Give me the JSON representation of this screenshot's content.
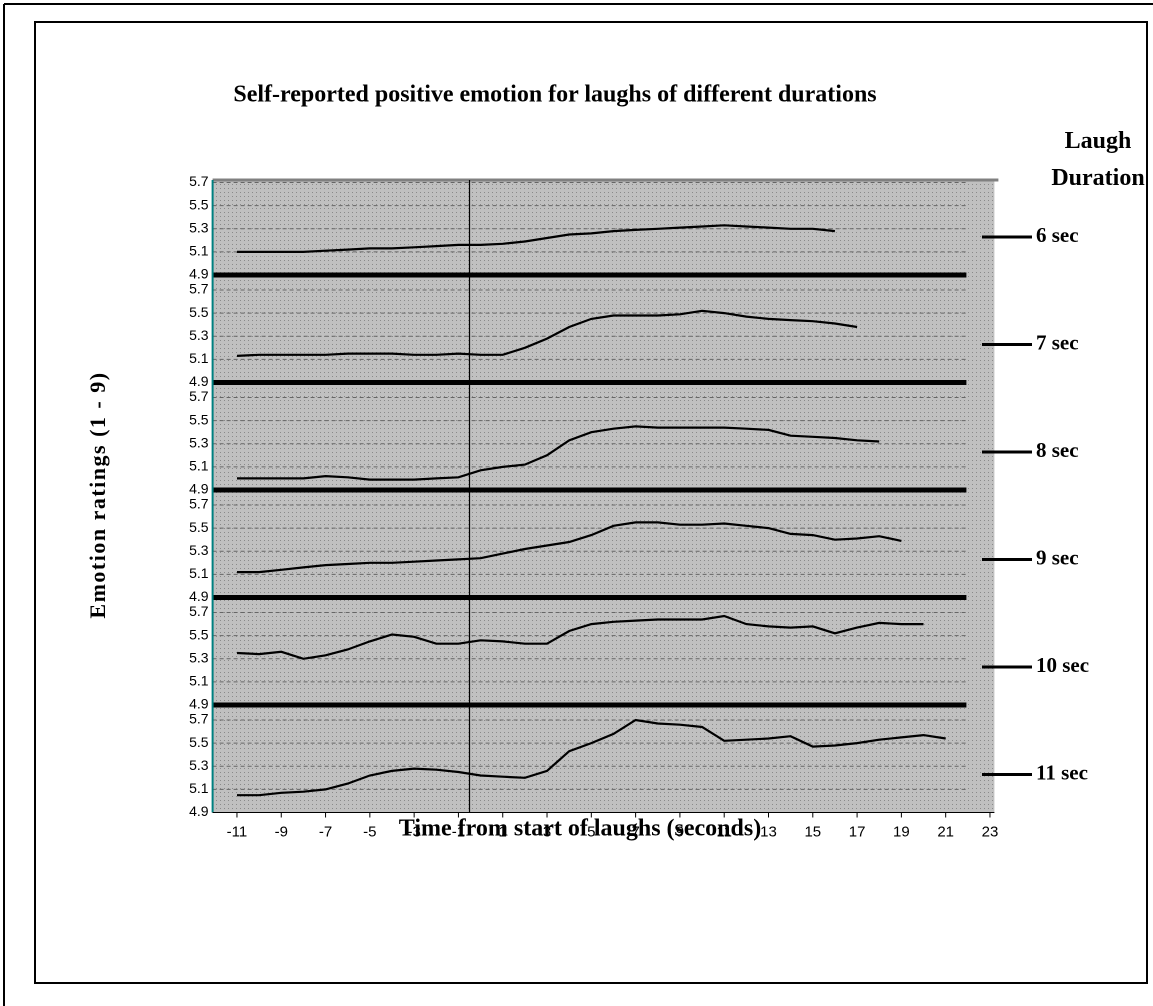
{
  "chart_data": {
    "type": "line",
    "title": "Self-reported positive emotion for laughs of different durations",
    "xlabel": "Time from start of laughs (seconds)",
    "ylabel": "Emotion ratings (1 - 9)",
    "legend_title": "Laugh Duration",
    "x": [
      -11,
      -10,
      -9,
      -8,
      -7,
      -6,
      -5,
      -4,
      -3,
      -2,
      -1,
      0,
      1,
      2,
      3,
      4,
      5,
      6,
      7,
      8,
      9,
      10,
      11,
      12,
      13,
      14,
      15,
      16,
      17,
      18,
      19,
      20,
      21
    ],
    "series": [
      {
        "name": "6 sec",
        "color": "#000000",
        "values": [
          5.1,
          5.1,
          5.1,
          5.1,
          5.11,
          5.12,
          5.13,
          5.13,
          5.14,
          5.15,
          5.16,
          5.16,
          5.17,
          5.19,
          5.22,
          5.25,
          5.26,
          5.28,
          5.29,
          5.3,
          5.31,
          5.32,
          5.33,
          5.32,
          5.31,
          5.3,
          5.3,
          5.28,
          null,
          null,
          null,
          null,
          null
        ]
      },
      {
        "name": "7 sec",
        "color": "#000000",
        "values": [
          5.13,
          5.14,
          5.14,
          5.14,
          5.14,
          5.15,
          5.15,
          5.15,
          5.14,
          5.14,
          5.15,
          5.14,
          5.14,
          5.2,
          5.28,
          5.38,
          5.45,
          5.48,
          5.48,
          5.48,
          5.49,
          5.52,
          5.5,
          5.47,
          5.45,
          5.44,
          5.43,
          5.41,
          5.38,
          null,
          null,
          null,
          null
        ]
      },
      {
        "name": "8 sec",
        "color": "#000000",
        "values": [
          5.0,
          5.0,
          5.0,
          5.0,
          5.02,
          5.01,
          4.99,
          4.99,
          4.99,
          5.0,
          5.01,
          5.07,
          5.1,
          5.12,
          5.2,
          5.33,
          5.4,
          5.43,
          5.45,
          5.44,
          5.44,
          5.44,
          5.44,
          5.43,
          5.42,
          5.37,
          5.36,
          5.35,
          5.33,
          5.32,
          null,
          null,
          null
        ]
      },
      {
        "name": "9 sec",
        "color": "#000000",
        "values": [
          5.12,
          5.12,
          5.14,
          5.16,
          5.18,
          5.19,
          5.2,
          5.2,
          5.21,
          5.22,
          5.23,
          5.24,
          5.28,
          5.32,
          5.35,
          5.38,
          5.44,
          5.52,
          5.55,
          5.55,
          5.53,
          5.53,
          5.54,
          5.52,
          5.5,
          5.45,
          5.44,
          5.4,
          5.41,
          5.43,
          5.39,
          null,
          null
        ]
      },
      {
        "name": "10 sec",
        "color": "#000000",
        "values": [
          5.35,
          5.34,
          5.36,
          5.3,
          5.33,
          5.38,
          5.45,
          5.51,
          5.49,
          5.43,
          5.43,
          5.46,
          5.45,
          5.43,
          5.43,
          5.54,
          5.6,
          5.62,
          5.63,
          5.64,
          5.64,
          5.64,
          5.67,
          5.6,
          5.58,
          5.57,
          5.58,
          5.52,
          5.57,
          5.61,
          5.6,
          5.6,
          null
        ]
      },
      {
        "name": "11 sec",
        "color": "#000000",
        "values": [
          5.05,
          5.05,
          5.07,
          5.08,
          5.1,
          5.15,
          5.22,
          5.26,
          5.28,
          5.27,
          5.25,
          5.22,
          5.21,
          5.2,
          5.26,
          5.43,
          5.5,
          5.58,
          5.7,
          5.67,
          5.66,
          5.64,
          5.52,
          5.53,
          5.54,
          5.56,
          5.47,
          5.48,
          5.5,
          5.53,
          5.55,
          5.57,
          5.54
        ]
      }
    ],
    "xlim": [
      -12.1,
      23.2
    ],
    "xticks": [
      -11,
      -9,
      -7,
      -5,
      -3,
      -1,
      1,
      3,
      5,
      7,
      9,
      11,
      13,
      15,
      17,
      19,
      21,
      23
    ],
    "ylim": [
      4.9,
      5.83
    ],
    "yticks": [
      4.9,
      5.1,
      5.3,
      5.5,
      5.7
    ],
    "vline_x": -0.5,
    "grid": true
  }
}
